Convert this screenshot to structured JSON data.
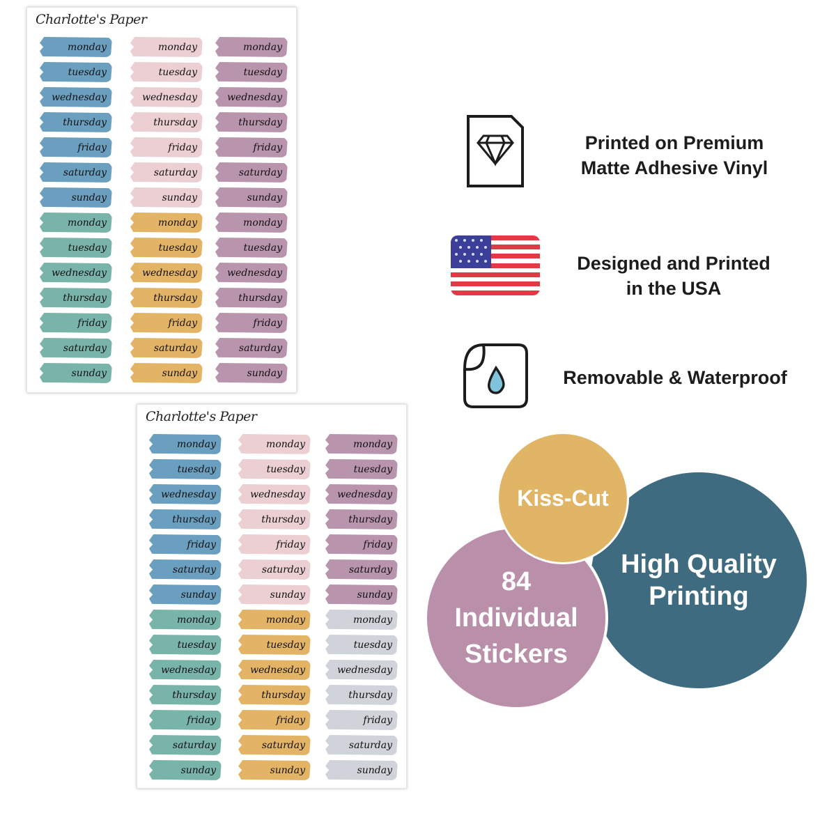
{
  "sheets": {
    "brand": "Charlotte's Paper",
    "days": [
      "monday",
      "tuesday",
      "wednesday",
      "thursday",
      "friday",
      "saturday",
      "sunday"
    ],
    "back_colors": [
      [
        "#6a9fc0",
        "#79b4ab"
      ],
      [
        "#eccfd2",
        "#e3b466"
      ],
      [
        "#b995ad",
        "#b995ad"
      ]
    ],
    "front_colors": [
      [
        "#6a9fc0",
        "#79b4ab"
      ],
      [
        "#eccfd2",
        "#e3b466"
      ],
      [
        "#b995ad",
        "#d0d3da"
      ]
    ]
  },
  "features": [
    {
      "icon": "diamond-document-icon",
      "text_line1": "Printed on Premium",
      "text_line2": "Matte Adhesive Vinyl"
    },
    {
      "icon": "us-flag-icon",
      "text_line1": "Designed and Printed",
      "text_line2": "in the USA"
    },
    {
      "icon": "water-drop-sticker-icon",
      "text_line1": "Removable & Waterproof",
      "text_line2": ""
    }
  ],
  "badges": {
    "kiss_cut": {
      "label": "Kiss-Cut",
      "color": "#e1b566"
    },
    "quality": {
      "line1": "High Quality",
      "line2": "Printing",
      "color": "#3f6b80"
    },
    "count": {
      "line1": "84",
      "line2": "Individual",
      "line3": "Stickers",
      "color": "#b98faa"
    }
  }
}
